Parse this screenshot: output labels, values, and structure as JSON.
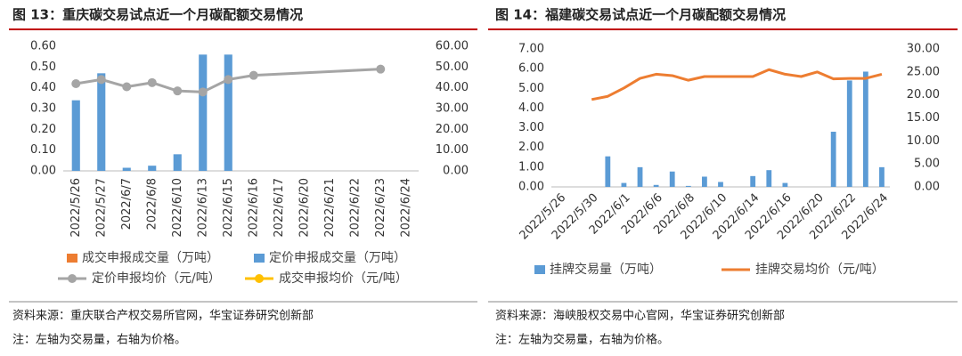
{
  "figures": [
    {
      "title": "图 13：重庆碳交易试点近一个月碳配额交易情况",
      "source": "资料来源：重庆联合产权交易所官网，华宝证券研究创新部",
      "note": "注：左轴为交易量，右轴为价格。"
    },
    {
      "title": "图 14：福建碳交易试点近一个月碳配额交易情况",
      "source": "资料来源：海峡股权交易中心官网，华宝证券研究创新部",
      "note": "注：左轴为交易量，右轴为价格。"
    }
  ],
  "chart_data": [
    {
      "type": "combo",
      "categories": [
        "2022/5/26",
        "2022/5/27",
        "2022/6/7",
        "2022/6/8",
        "2022/6/10",
        "2022/6/13",
        "2022/6/15",
        "2022/6/16",
        "2022/6/17",
        "2022/6/20",
        "2022/6/21",
        "2022/6/22",
        "2022/6/23",
        "2022/6/24"
      ],
      "series": [
        {
          "name": "成交申报成交量（万吨）",
          "type": "bar",
          "color": "#ed7d31",
          "values": [
            null,
            null,
            null,
            null,
            null,
            null,
            null,
            null,
            null,
            null,
            null,
            null,
            null,
            null
          ]
        },
        {
          "name": "定价申报成交量（万吨）",
          "type": "bar",
          "color": "#5b9bd5",
          "values": [
            0.34,
            0.47,
            0.015,
            0.025,
            0.08,
            0.56,
            0.56,
            null,
            null,
            null,
            null,
            null,
            null,
            null
          ]
        },
        {
          "name": "定价申报均价（元/吨）",
          "type": "line",
          "axis": "y2",
          "marker": true,
          "color": "#a5a5a5",
          "values": [
            42,
            44,
            40.5,
            42.5,
            38.5,
            38,
            44,
            46,
            null,
            null,
            null,
            null,
            49,
            null
          ]
        },
        {
          "name": "成交申报均价（元/吨）",
          "type": "line",
          "axis": "y2",
          "marker": true,
          "color": "#ffc000",
          "values": [
            null,
            null,
            null,
            null,
            null,
            null,
            null,
            null,
            null,
            null,
            null,
            null,
            null,
            null
          ]
        }
      ],
      "ylim": [
        0,
        0.6
      ],
      "yticks": [
        {
          "value": 0,
          "label": "0.00"
        },
        {
          "value": 0.1,
          "label": "0.10"
        },
        {
          "value": 0.2,
          "label": "0.20"
        },
        {
          "value": 0.3,
          "label": "0.30"
        },
        {
          "value": 0.4,
          "label": "0.40"
        },
        {
          "value": 0.5,
          "label": "0.50"
        },
        {
          "value": 0.6,
          "label": "0.60"
        }
      ],
      "y2lim": [
        0,
        60
      ],
      "y2ticks": [
        {
          "value": 0,
          "label": "0.00"
        },
        {
          "value": 10,
          "label": "10.00"
        },
        {
          "value": 20,
          "label": "20.00"
        },
        {
          "value": 30,
          "label": "30.00"
        },
        {
          "value": 40,
          "label": "40.00"
        },
        {
          "value": 50,
          "label": "50.00"
        },
        {
          "value": 60,
          "label": "60.00"
        }
      ],
      "connect_gaps": true
    },
    {
      "type": "combo",
      "categories": [
        "2022/5/26",
        null,
        "2022/5/30",
        null,
        "2022/6/1",
        null,
        "2022/6/6",
        null,
        "2022/6/8",
        null,
        "2022/6/10",
        null,
        "2022/6/14",
        null,
        "2022/6/16",
        null,
        "2022/6/20",
        null,
        "2022/6/22",
        null,
        "2022/6/24"
      ],
      "series": [
        {
          "name": "挂牌交易量（万吨）",
          "type": "bar",
          "color": "#5b9bd5",
          "values": [
            null,
            null,
            null,
            1.55,
            0.2,
            1.0,
            0.1,
            0.78,
            0.05,
            0.52,
            0.25,
            null,
            0.55,
            0.85,
            0.2,
            null,
            null,
            2.8,
            5.4,
            5.85,
            1.0
          ]
        },
        {
          "name": "挂牌交易均价（元/吨）",
          "type": "line",
          "axis": "y2",
          "marker": false,
          "color": "#ed7d31",
          "values": [
            null,
            null,
            19,
            19.7,
            21.5,
            23.6,
            24.5,
            24.2,
            23.2,
            24,
            24,
            24,
            24,
            25.5,
            24.5,
            24,
            25,
            23.5,
            23.6,
            23.6,
            24.5
          ]
        }
      ],
      "ylim": [
        0,
        7
      ],
      "yticks": [
        {
          "value": 0,
          "label": "0.00"
        },
        {
          "value": 1,
          "label": "1.00"
        },
        {
          "value": 2,
          "label": "2.00"
        },
        {
          "value": 3,
          "label": "3.00"
        },
        {
          "value": 4,
          "label": "4.00"
        },
        {
          "value": 5,
          "label": "5.00"
        },
        {
          "value": 6,
          "label": "6.00"
        },
        {
          "value": 7,
          "label": "7.00"
        }
      ],
      "y2lim": [
        0,
        30
      ],
      "y2ticks": [
        {
          "value": 0,
          "label": "0.00"
        },
        {
          "value": 5,
          "label": "5.00"
        },
        {
          "value": 10,
          "label": "10.00"
        },
        {
          "value": 15,
          "label": "15.00"
        },
        {
          "value": 20,
          "label": "20.00"
        },
        {
          "value": 25,
          "label": "25.00"
        },
        {
          "value": 30,
          "label": "30.00"
        }
      ],
      "connect_gaps": false
    }
  ]
}
